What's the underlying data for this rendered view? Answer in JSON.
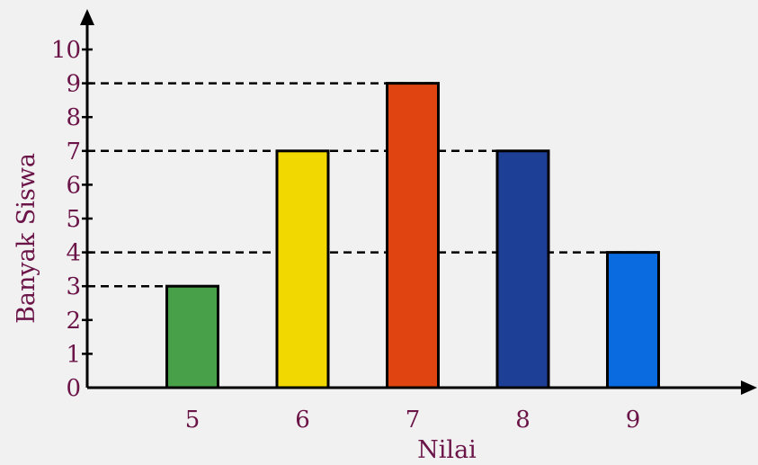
{
  "chart_data": {
    "type": "bar",
    "title": "",
    "xlabel": "Nilai",
    "ylabel": "Banyak Siswa",
    "categories": [
      "5",
      "6",
      "7",
      "8",
      "9"
    ],
    "values": [
      3,
      7,
      9,
      7,
      4
    ],
    "bar_colors": [
      "#48a048",
      "#f0d800",
      "#e04410",
      "#1e3f96",
      "#0a6ae0"
    ],
    "yticks": [
      "0",
      "1",
      "2",
      "3",
      "4",
      "5",
      "6",
      "7",
      "8",
      "9",
      "10"
    ],
    "ylim": [
      0,
      10
    ],
    "reference_lines": [
      3,
      4,
      7,
      9
    ],
    "grid": false,
    "legend": "none",
    "colors": {
      "text": "#6b1448",
      "axis": "#000000",
      "background": "#f1f1f1"
    }
  }
}
